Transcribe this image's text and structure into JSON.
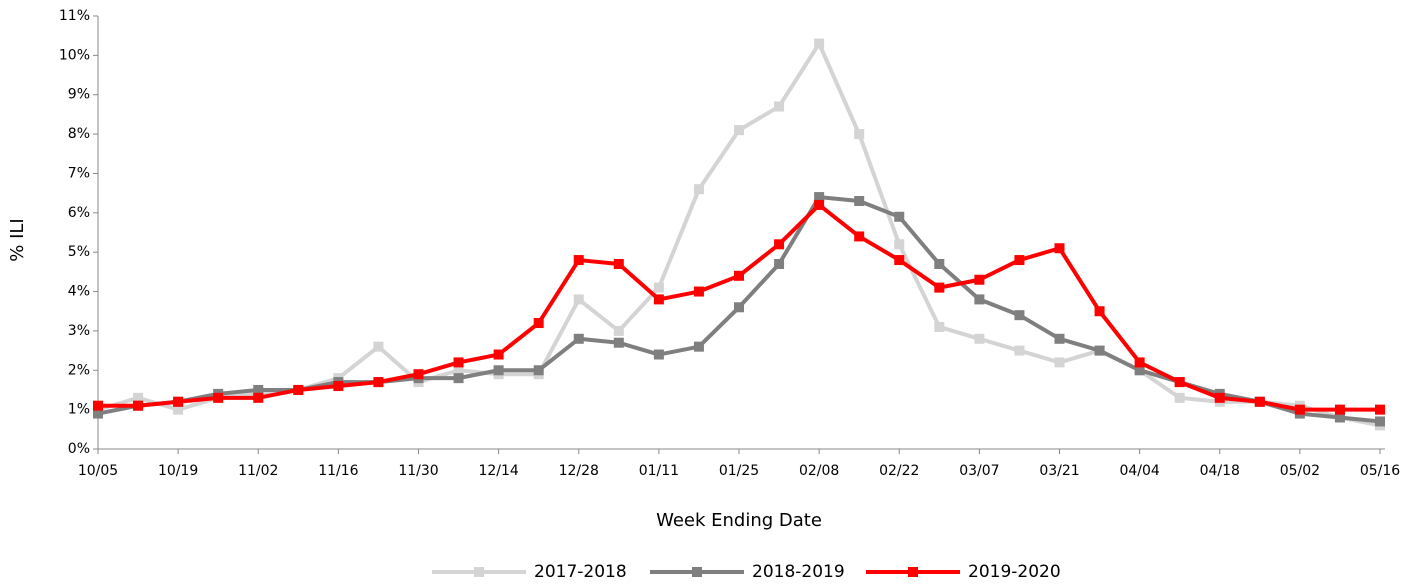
{
  "chart_data": {
    "type": "line",
    "x_label": "Week Ending Date",
    "y_label": "% ILI",
    "categories": [
      "10/05",
      null,
      "10/19",
      null,
      "11/02",
      null,
      "11/16",
      null,
      "11/30",
      null,
      "12/14",
      null,
      "12/28",
      null,
      "01/11",
      null,
      "01/25",
      null,
      "02/08",
      null,
      "02/22",
      null,
      "03/07",
      null,
      "03/21",
      null,
      "04/04",
      null,
      "04/18",
      null,
      "05/02",
      null,
      "05/16"
    ],
    "series": [
      {
        "name": "2017-2018",
        "color": "#d4d4d4",
        "values": [
          1.0,
          1.3,
          1.0,
          1.3,
          1.4,
          1.5,
          1.8,
          2.6,
          1.7,
          2.0,
          1.9,
          1.9,
          3.8,
          3.0,
          4.1,
          6.6,
          8.1,
          8.7,
          10.3,
          8.0,
          5.2,
          3.1,
          2.8,
          2.5,
          2.2,
          2.5,
          2.0,
          1.3,
          1.2,
          1.2,
          1.1,
          0.8,
          0.6
        ]
      },
      {
        "name": "2018-2019",
        "color": "#7f7f7f",
        "values": [
          0.9,
          1.1,
          1.2,
          1.4,
          1.5,
          1.5,
          1.7,
          1.7,
          1.8,
          1.8,
          2.0,
          2.0,
          2.8,
          2.7,
          2.4,
          2.6,
          3.6,
          4.7,
          6.4,
          6.3,
          5.9,
          4.7,
          3.8,
          3.4,
          2.8,
          2.5,
          2.0,
          1.7,
          1.4,
          1.2,
          0.9,
          0.8,
          0.7
        ]
      },
      {
        "name": "2019-2020",
        "color": "#ff0000",
        "values": [
          1.1,
          1.1,
          1.2,
          1.3,
          1.3,
          1.5,
          1.6,
          1.7,
          1.9,
          2.2,
          2.4,
          3.2,
          4.8,
          4.7,
          3.8,
          4.0,
          4.4,
          5.2,
          6.2,
          5.4,
          4.8,
          4.1,
          4.3,
          4.8,
          5.1,
          3.5,
          2.2,
          1.7,
          1.3,
          1.2,
          1.0,
          1.0,
          1.0
        ]
      }
    ],
    "ylim": [
      0,
      11
    ],
    "yticks": [
      {
        "value": 0,
        "label": "0%"
      },
      {
        "value": 1,
        "label": "1%"
      },
      {
        "value": 2,
        "label": "2%"
      },
      {
        "value": 3,
        "label": "3%"
      },
      {
        "value": 4,
        "label": "4%"
      },
      {
        "value": 5,
        "label": "5%"
      },
      {
        "value": 6,
        "label": "6%"
      },
      {
        "value": 7,
        "label": "7%"
      },
      {
        "value": 8,
        "label": "8%"
      },
      {
        "value": 9,
        "label": "9%"
      },
      {
        "value": 10,
        "label": "10%"
      },
      {
        "value": 11,
        "label": "11%"
      }
    ],
    "grid": false,
    "legend": "bottom"
  }
}
